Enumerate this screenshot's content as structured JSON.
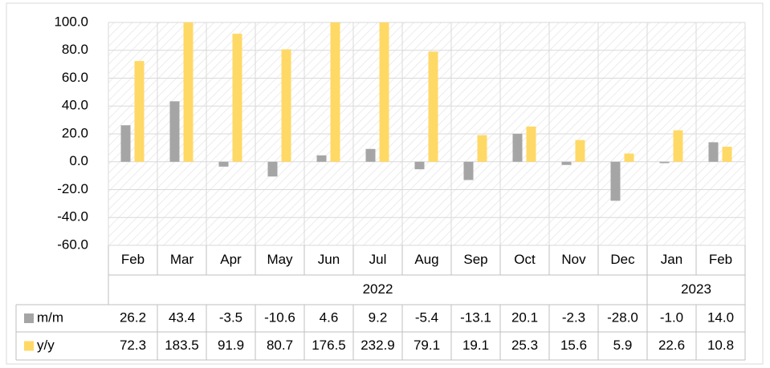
{
  "chart_data": {
    "type": "bar",
    "category_groups": [
      {
        "label": "2022",
        "categories": [
          "Feb",
          "Mar",
          "Apr",
          "May",
          "Jun",
          "Jul",
          "Aug",
          "Sep",
          "Oct",
          "Nov",
          "Dec"
        ]
      },
      {
        "label": "2023",
        "categories": [
          "Jan",
          "Feb"
        ]
      }
    ],
    "series": [
      {
        "name": "m/m",
        "color": "#a5a5a5",
        "values": [
          26.2,
          43.4,
          -3.5,
          -10.6,
          4.6,
          9.2,
          -5.4,
          -13.1,
          20.1,
          -2.3,
          -28,
          -1,
          14
        ],
        "value_labels": [
          "26.2",
          "43.4",
          "-3.5",
          "-10.6",
          "4.6",
          "9.2",
          "-5.4",
          "-13.1",
          "20.1",
          "-2.3",
          "-28.0",
          "-1.0",
          "14.0"
        ]
      },
      {
        "name": "y/y",
        "color": "#ffd966",
        "values": [
          72.3,
          183.5,
          91.9,
          80.7,
          176.5,
          232.9,
          79.1,
          19.1,
          25.3,
          15.6,
          5.9,
          22.6,
          10.8
        ],
        "value_labels": [
          "72.3",
          "183.5",
          "91.9",
          "80.7",
          "176.5",
          "232.9",
          "79.1",
          "19.1",
          "25.3",
          "15.6",
          "5.9",
          "22.6",
          "10.8"
        ]
      }
    ],
    "ylim": [
      -60,
      100
    ],
    "yticks": [
      {
        "value": -60,
        "label": "-60.0"
      },
      {
        "value": -40,
        "label": "-40.0"
      },
      {
        "value": -20,
        "label": "-20.0"
      },
      {
        "value": 0,
        "label": "0.0"
      },
      {
        "value": 20,
        "label": "20.0"
      },
      {
        "value": 40,
        "label": "40.0"
      },
      {
        "value": 60,
        "label": "60.0"
      },
      {
        "value": 80,
        "label": "80.0"
      },
      {
        "value": 100,
        "label": "100.0"
      }
    ],
    "grid": true
  }
}
